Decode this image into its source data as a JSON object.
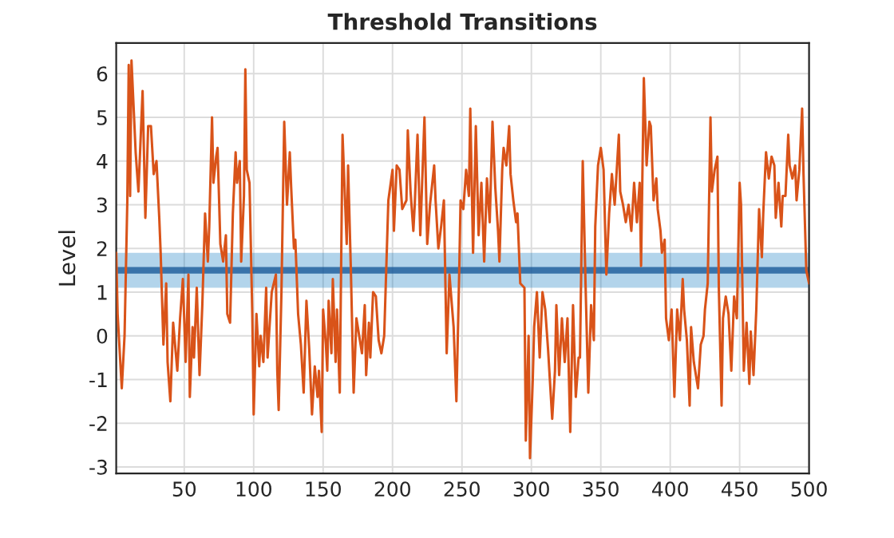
{
  "chart_data": {
    "type": "line",
    "title": "Threshold Transitions",
    "ylabel": "Level",
    "x": [
      1,
      2,
      5,
      7,
      9,
      10,
      11,
      12,
      15,
      17,
      20,
      22,
      24,
      26,
      28,
      30,
      32,
      33,
      35,
      37,
      38,
      40,
      42,
      45,
      47,
      49,
      51,
      53,
      54,
      56,
      57,
      59,
      61,
      63,
      65,
      67,
      68,
      70,
      71,
      73,
      74,
      76,
      78,
      80,
      81,
      83,
      85,
      87,
      88,
      90,
      91,
      93,
      94,
      95,
      97,
      99,
      100,
      102,
      104,
      105,
      107,
      109,
      110,
      113,
      116,
      117,
      118,
      120,
      122,
      124,
      126,
      127,
      129,
      130,
      132,
      134,
      136,
      138,
      140,
      142,
      144,
      146,
      147,
      149,
      150,
      152,
      153,
      154,
      156,
      157,
      159,
      160,
      162,
      164,
      167,
      168,
      170,
      172,
      174,
      176,
      178,
      180,
      181,
      183,
      184,
      186,
      188,
      190,
      192,
      194,
      197,
      200,
      201,
      203,
      205,
      207,
      210,
      211,
      213,
      215,
      216,
      218,
      220,
      223,
      225,
      227,
      230,
      231,
      233,
      235,
      237,
      239,
      241,
      244,
      246,
      248,
      249,
      251,
      253,
      255,
      256,
      258,
      260,
      262,
      264,
      266,
      268,
      270,
      272,
      274,
      276,
      277,
      279,
      280,
      282,
      284,
      285,
      287,
      289,
      290,
      292,
      295,
      296,
      298,
      299,
      301,
      302,
      304,
      306,
      308,
      310,
      312,
      315,
      317,
      318,
      320,
      322,
      324,
      326,
      328,
      330,
      332,
      334,
      335,
      337,
      339,
      341,
      343,
      345,
      346,
      348,
      350,
      352,
      354,
      356,
      358,
      360,
      363,
      364,
      366,
      368,
      370,
      372,
      374,
      376,
      378,
      379,
      381,
      383,
      385,
      386,
      388,
      390,
      391,
      393,
      394,
      396,
      397,
      399,
      401,
      403,
      405,
      407,
      409,
      410,
      412,
      414,
      415,
      417,
      420,
      422,
      424,
      425,
      427,
      429,
      430,
      432,
      434,
      435,
      437,
      438,
      440,
      442,
      444,
      446,
      448,
      450,
      451,
      453,
      455,
      457,
      458,
      460,
      462,
      464,
      466,
      467,
      469,
      471,
      473,
      475,
      476,
      478,
      480,
      481,
      483,
      485,
      486,
      488,
      490,
      491,
      493,
      495,
      496,
      498,
      500
    ],
    "series": [
      {
        "color": "#d95319",
        "values": [
          1.9,
          0.5,
          -1.2,
          0.0,
          3.1,
          6.2,
          3.2,
          6.3,
          4.2,
          3.3,
          5.6,
          2.7,
          4.8,
          4.8,
          3.7,
          4.0,
          2.7,
          1.9,
          -0.2,
          1.2,
          -0.6,
          -1.5,
          0.3,
          -0.8,
          0.4,
          1.3,
          -0.6,
          1.4,
          -1.4,
          0.2,
          -0.5,
          1.1,
          -0.9,
          0.7,
          2.8,
          1.7,
          2.5,
          5.0,
          3.5,
          4.1,
          4.3,
          2.1,
          1.7,
          2.3,
          0.5,
          0.3,
          2.8,
          4.2,
          3.5,
          4.0,
          1.7,
          3.2,
          6.1,
          3.8,
          3.5,
          0.5,
          -1.8,
          0.5,
          -0.7,
          0.0,
          -0.6,
          1.1,
          -0.5,
          1.0,
          1.4,
          -0.8,
          -1.7,
          1.0,
          4.9,
          3.0,
          4.2,
          3.4,
          2.0,
          2.2,
          0.5,
          -0.2,
          -1.3,
          0.8,
          -0.3,
          -1.8,
          -0.7,
          -1.4,
          -0.8,
          -2.2,
          0.6,
          -0.2,
          -0.8,
          0.8,
          -0.4,
          1.3,
          -0.6,
          0.6,
          -1.3,
          4.6,
          2.1,
          3.9,
          1.5,
          -1.3,
          0.4,
          0.0,
          -0.4,
          0.7,
          -0.9,
          0.3,
          -0.5,
          1.0,
          0.9,
          -0.1,
          -0.4,
          0.0,
          3.1,
          3.8,
          2.4,
          3.9,
          3.8,
          2.9,
          3.1,
          4.7,
          3.3,
          2.4,
          3.0,
          4.6,
          2.3,
          5.0,
          2.1,
          3.0,
          3.9,
          3.1,
          2.0,
          2.5,
          3.1,
          -0.4,
          1.4,
          0.2,
          -1.5,
          1.4,
          3.1,
          2.9,
          3.8,
          3.2,
          5.2,
          1.9,
          4.8,
          2.3,
          3.5,
          1.7,
          3.6,
          2.6,
          4.9,
          3.4,
          2.4,
          1.7,
          3.8,
          4.3,
          3.9,
          4.8,
          3.7,
          3.1,
          2.6,
          2.8,
          1.2,
          1.1,
          -2.4,
          0.0,
          -2.8,
          -1.0,
          0.2,
          1.0,
          -0.5,
          1.0,
          0.6,
          -0.3,
          -1.9,
          -0.8,
          0.7,
          -0.9,
          0.4,
          -0.6,
          0.4,
          -2.2,
          0.7,
          -1.4,
          -0.5,
          -0.5,
          4.0,
          1.2,
          -1.3,
          0.7,
          -0.1,
          2.5,
          3.9,
          4.3,
          3.8,
          1.4,
          2.8,
          3.7,
          3.0,
          4.6,
          3.3,
          3.0,
          2.6,
          3.0,
          2.4,
          3.5,
          2.6,
          3.5,
          1.6,
          5.9,
          3.9,
          4.9,
          4.8,
          3.1,
          3.6,
          2.9,
          2.4,
          1.9,
          2.2,
          0.4,
          -0.1,
          0.6,
          -1.4,
          0.6,
          -0.1,
          1.3,
          0.6,
          -0.1,
          -1.6,
          0.2,
          -0.6,
          -1.2,
          -0.2,
          0.0,
          0.6,
          1.2,
          5.0,
          3.3,
          3.8,
          4.1,
          1.1,
          -1.6,
          0.4,
          0.9,
          0.5,
          -0.8,
          0.9,
          0.4,
          3.5,
          3.0,
          -0.8,
          0.3,
          -1.1,
          0.1,
          -0.9,
          0.6,
          2.9,
          1.8,
          2.8,
          4.2,
          3.6,
          4.1,
          3.9,
          2.7,
          3.5,
          2.5,
          3.2,
          3.2,
          4.6,
          3.9,
          3.6,
          3.9,
          3.1,
          3.8,
          5.2,
          3.7,
          1.5,
          1.2
        ]
      }
    ],
    "bands": [
      {
        "axis": "y",
        "from": 1.1,
        "to": 1.9,
        "color": "#0072bd"
      }
    ],
    "ref_lines": [
      {
        "axis": "y",
        "value": 1.5,
        "color": "#1a5a9a"
      }
    ],
    "xlim": [
      1,
      500
    ],
    "xticks": [
      50,
      100,
      150,
      200,
      250,
      300,
      350,
      400,
      450,
      500
    ],
    "ylim": [
      -3.15,
      6.7
    ],
    "yticks": [
      -3,
      -2,
      -1,
      0,
      1,
      2,
      3,
      4,
      5,
      6
    ],
    "grid": true,
    "line_style": "solid"
  }
}
